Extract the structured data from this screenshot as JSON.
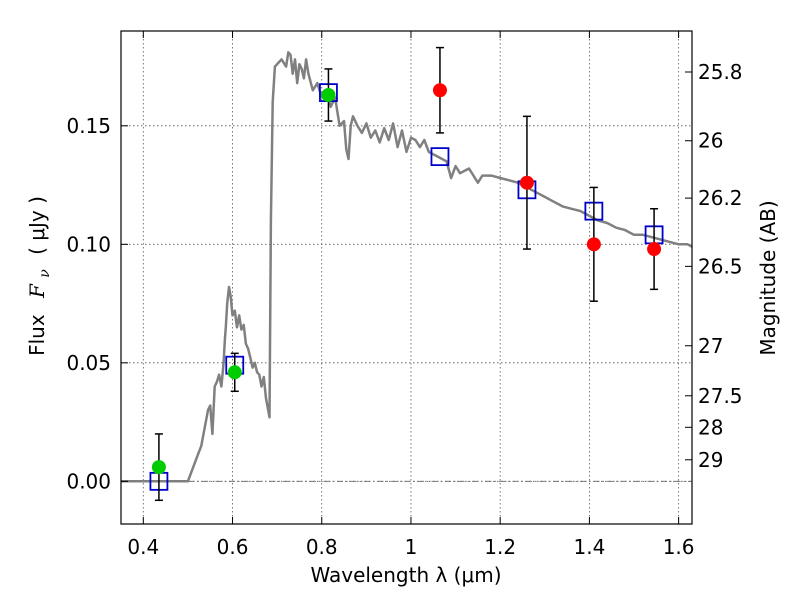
{
  "chart_data": {
    "type": "scatter",
    "xlabel": "Wavelength  λ (μm)",
    "ylabel_left_prefix": "Flux",
    "ylabel_left_symbol": "F",
    "ylabel_left_subscript": "ν",
    "ylabel_left_unit": "( μJy )",
    "ylabel_right": "Magnitude (AB)",
    "xlim": [
      0.35,
      1.63
    ],
    "ylim": [
      -0.018,
      0.19
    ],
    "x_ticks": [
      0.4,
      0.6,
      0.8,
      1.0,
      1.2,
      1.4,
      1.6
    ],
    "x_tick_labels": [
      "0.4",
      "0.6",
      "0.8",
      "1",
      "1.2",
      "1.4",
      "1.6"
    ],
    "y_ticks": [
      0.0,
      0.05,
      0.1,
      0.15
    ],
    "y_tick_labels": [
      "0.00",
      "0.05",
      "0.10",
      "0.15"
    ],
    "right_ticks": [
      {
        "label": "25.8",
        "flux": 0.1727
      },
      {
        "label": "26",
        "flux": 0.1437
      },
      {
        "label": "26.2",
        "flux": 0.1195
      },
      {
        "label": "26.5",
        "flux": 0.0907
      },
      {
        "label": "27",
        "flux": 0.0572
      },
      {
        "label": "27.5",
        "flux": 0.0361
      },
      {
        "label": "28",
        "flux": 0.0228
      },
      {
        "label": "29",
        "flux": 0.0091
      }
    ],
    "grid": true,
    "zero_line": true,
    "series": [
      {
        "name": "template_spectrum",
        "kind": "line",
        "color": "#808080",
        "x": [
          0.35,
          0.5,
          0.52,
          0.53,
          0.545,
          0.55,
          0.555,
          0.56,
          0.565,
          0.57,
          0.575,
          0.58,
          0.583,
          0.585,
          0.588,
          0.592,
          0.596,
          0.6,
          0.605,
          0.61,
          0.615,
          0.62,
          0.625,
          0.63,
          0.635,
          0.64,
          0.645,
          0.65,
          0.655,
          0.66,
          0.665,
          0.67,
          0.675,
          0.68,
          0.683,
          0.686,
          0.69,
          0.695,
          0.7,
          0.71,
          0.72,
          0.725,
          0.73,
          0.735,
          0.74,
          0.745,
          0.75,
          0.755,
          0.76,
          0.765,
          0.77,
          0.78,
          0.79,
          0.8,
          0.81,
          0.82,
          0.83,
          0.84,
          0.85,
          0.855,
          0.86,
          0.865,
          0.87,
          0.88,
          0.89,
          0.9,
          0.91,
          0.92,
          0.93,
          0.94,
          0.95,
          0.96,
          0.97,
          0.98,
          0.99,
          1.0,
          1.01,
          1.02,
          1.03,
          1.04,
          1.06,
          1.08,
          1.09,
          1.1,
          1.11,
          1.13,
          1.15,
          1.16,
          1.18,
          1.2,
          1.22,
          1.24,
          1.26,
          1.28,
          1.3,
          1.32,
          1.34,
          1.36,
          1.38,
          1.4,
          1.42,
          1.44,
          1.46,
          1.48,
          1.5,
          1.52,
          1.54,
          1.56,
          1.58,
          1.6,
          1.62,
          1.63
        ],
        "y": [
          0.0,
          0.0,
          0.01,
          0.015,
          0.03,
          0.032,
          0.02,
          0.04,
          0.042,
          0.045,
          0.04,
          0.05,
          0.06,
          0.065,
          0.075,
          0.082,
          0.078,
          0.07,
          0.072,
          0.065,
          0.07,
          0.064,
          0.066,
          0.058,
          0.056,
          0.052,
          0.048,
          0.05,
          0.046,
          0.045,
          0.04,
          0.044,
          0.035,
          0.03,
          0.027,
          0.11,
          0.16,
          0.175,
          0.176,
          0.178,
          0.175,
          0.181,
          0.18,
          0.172,
          0.178,
          0.168,
          0.176,
          0.174,
          0.17,
          0.178,
          0.172,
          0.165,
          0.168,
          0.162,
          0.165,
          0.158,
          0.162,
          0.15,
          0.152,
          0.14,
          0.136,
          0.15,
          0.154,
          0.15,
          0.147,
          0.151,
          0.145,
          0.148,
          0.143,
          0.149,
          0.144,
          0.151,
          0.141,
          0.148,
          0.139,
          0.145,
          0.144,
          0.141,
          0.144,
          0.139,
          0.137,
          0.135,
          0.128,
          0.133,
          0.13,
          0.132,
          0.126,
          0.129,
          0.129,
          0.128,
          0.127,
          0.126,
          0.124,
          0.122,
          0.12,
          0.118,
          0.116,
          0.115,
          0.114,
          0.112,
          0.11,
          0.109,
          0.107,
          0.106,
          0.104,
          0.104,
          0.103,
          0.102,
          0.101,
          0.1,
          0.1,
          0.099
        ]
      },
      {
        "name": "model_points",
        "kind": "open_square",
        "color": "#0000cc",
        "x": [
          0.435,
          0.605,
          0.815,
          1.065,
          1.26,
          1.41,
          1.545
        ],
        "y": [
          0.0,
          0.049,
          0.164,
          0.137,
          0.123,
          0.114,
          0.104
        ]
      },
      {
        "name": "optical_detections",
        "kind": "filled_circle",
        "color": "#00cc00",
        "x": [
          0.435,
          0.605,
          0.815
        ],
        "y": [
          0.006,
          0.046,
          0.163
        ],
        "yerr": [
          0.014,
          0.008,
          0.011
        ]
      },
      {
        "name": "nir_detections",
        "kind": "filled_circle",
        "color": "#ff0000",
        "x": [
          1.065,
          1.26,
          1.41,
          1.545
        ],
        "y": [
          0.165,
          0.126,
          0.1,
          0.098
        ],
        "yerr": [
          0.018,
          0.028,
          0.024,
          0.017
        ]
      }
    ]
  }
}
